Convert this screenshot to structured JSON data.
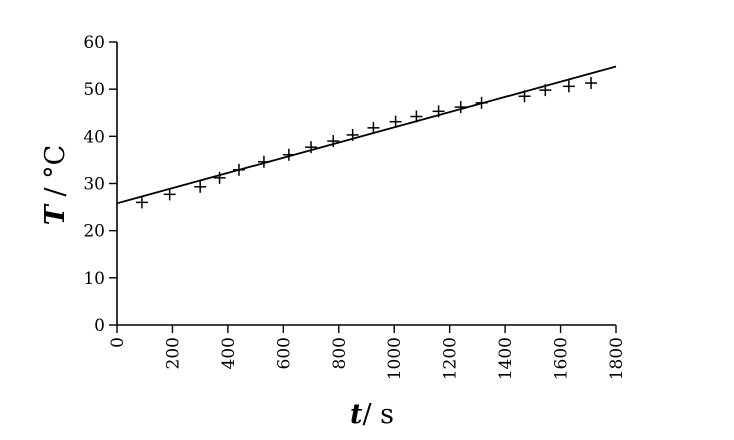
{
  "chart_data": {
    "type": "scatter",
    "xlabel_var": "t",
    "xlabel_unit": "/ s",
    "ylabel_var": "T",
    "ylabel_unit": " / °C",
    "xlim": [
      0,
      1800
    ],
    "ylim": [
      0,
      60
    ],
    "x_ticks": [
      0,
      200,
      400,
      600,
      800,
      1000,
      1200,
      1400,
      1600,
      1800
    ],
    "y_ticks": [
      0,
      10,
      20,
      30,
      40,
      50,
      60
    ],
    "grid": false,
    "marker": "+",
    "points": [
      {
        "x": 90,
        "y": 26.0
      },
      {
        "x": 190,
        "y": 27.7
      },
      {
        "x": 300,
        "y": 29.3
      },
      {
        "x": 370,
        "y": 31.2
      },
      {
        "x": 440,
        "y": 32.9
      },
      {
        "x": 530,
        "y": 34.6
      },
      {
        "x": 620,
        "y": 36.1
      },
      {
        "x": 700,
        "y": 37.7
      },
      {
        "x": 780,
        "y": 39.0
      },
      {
        "x": 850,
        "y": 40.3
      },
      {
        "x": 925,
        "y": 41.8
      },
      {
        "x": 1005,
        "y": 43.1
      },
      {
        "x": 1080,
        "y": 44.2
      },
      {
        "x": 1160,
        "y": 45.3
      },
      {
        "x": 1240,
        "y": 46.2
      },
      {
        "x": 1315,
        "y": 47.1
      },
      {
        "x": 1470,
        "y": 48.5
      },
      {
        "x": 1545,
        "y": 49.8
      },
      {
        "x": 1630,
        "y": 50.6
      },
      {
        "x": 1710,
        "y": 51.3
      }
    ],
    "fit_line": {
      "x": [
        0,
        1800
      ],
      "y": [
        25.8,
        54.8
      ]
    },
    "colors": {
      "ink": "#000000",
      "background": "#ffffff"
    }
  }
}
